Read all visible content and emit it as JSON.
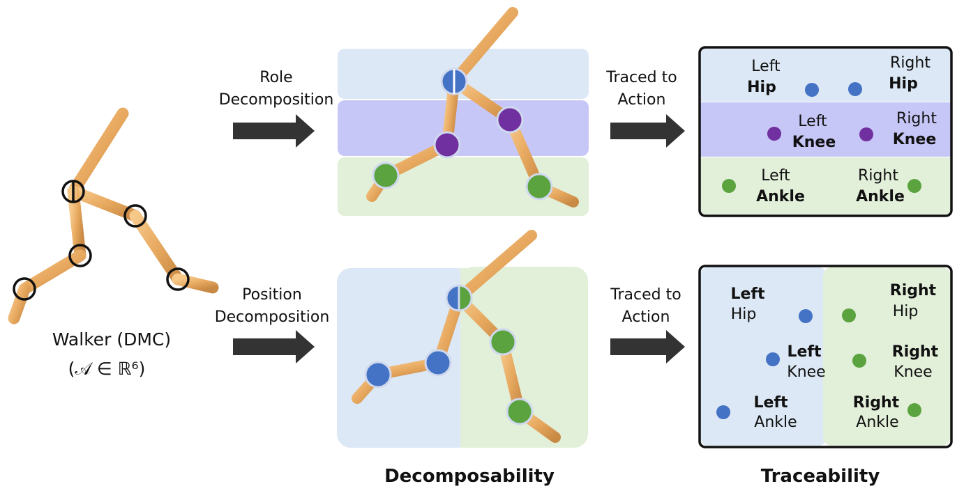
{
  "walker": {
    "name": "Walker (DMC)",
    "space": "(𝒜 ∈ ℝ⁶)"
  },
  "role_arrow": {
    "line1": "Role",
    "line2": "Decomposition"
  },
  "position_arrow": {
    "line1": "Position",
    "line2": "Decomposition"
  },
  "trace_top": {
    "line1": "Traced to",
    "line2": "Action"
  },
  "trace_bottom": {
    "line1": "Traced to",
    "line2": "Action"
  },
  "role_panel": {
    "left_hip": {
      "side": "Left",
      "joint": "Hip"
    },
    "right_hip": {
      "side": "Right",
      "joint": "Hip"
    },
    "left_knee": {
      "side": "Left",
      "joint": "Knee"
    },
    "right_knee": {
      "side": "Right",
      "joint": "Knee"
    },
    "left_ankle": {
      "side": "Left",
      "joint": "Ankle"
    },
    "right_ankle": {
      "side": "Right",
      "joint": "Ankle"
    }
  },
  "position_panel": {
    "left_hip": {
      "side": "Left",
      "joint": "Hip"
    },
    "right_hip": {
      "side": "Right",
      "joint": "Hip"
    },
    "left_knee": {
      "side": "Left",
      "joint": "Knee"
    },
    "right_knee": {
      "side": "Right",
      "joint": "Knee"
    },
    "left_ankle": {
      "side": "Left",
      "joint": "Ankle"
    },
    "right_ankle": {
      "side": "Right",
      "joint": "Ankle"
    }
  },
  "captions": {
    "decomposability": "Decomposability",
    "traceability": "Traceability"
  },
  "colors": {
    "limb": "#e8a960",
    "blue_joint": "#4472c4",
    "purple_joint": "#7030a0",
    "green_joint": "#5aa33e",
    "band_blue": "#dce8f5",
    "band_purple": "#c7c7f7",
    "band_green": "#e2efd9",
    "arrow": "#333333"
  }
}
